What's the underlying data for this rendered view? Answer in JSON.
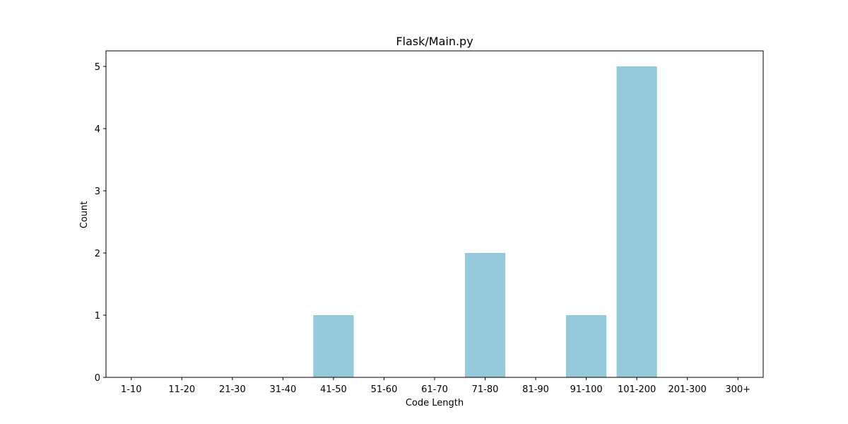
{
  "chart_data": {
    "type": "bar",
    "title": "Flask/Main.py",
    "xlabel": "Code Length",
    "ylabel": "Count",
    "categories": [
      "1-10",
      "11-20",
      "21-30",
      "31-40",
      "41-50",
      "51-60",
      "61-70",
      "71-80",
      "81-90",
      "91-100",
      "101-200",
      "201-300",
      "300+"
    ],
    "values": [
      0,
      0,
      0,
      0,
      1,
      0,
      0,
      2,
      0,
      1,
      5,
      0,
      0
    ],
    "yticks": [
      0,
      1,
      2,
      3,
      4,
      5
    ],
    "ylim": [
      0,
      5.25
    ],
    "grid": false,
    "legend": "none",
    "bar_color": "#96c9dc"
  }
}
